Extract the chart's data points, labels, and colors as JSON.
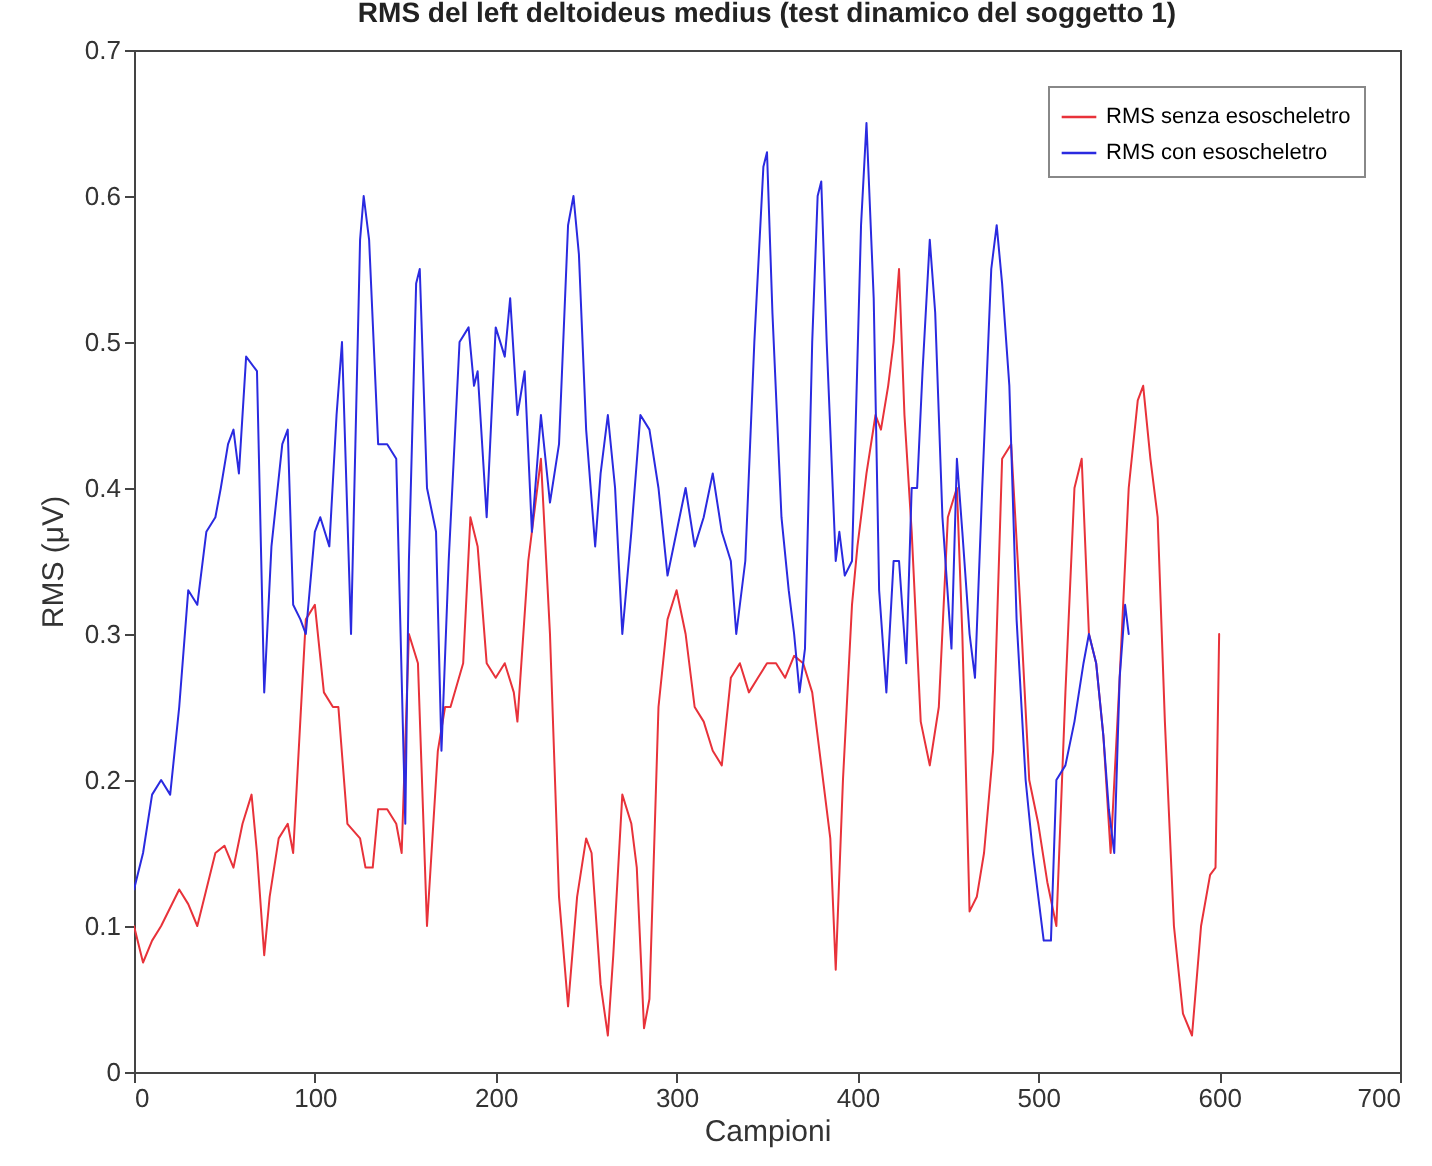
{
  "chart_data": {
    "type": "line",
    "title": "RMS del left deltoideus medius (test dinamico del soggetto 1)",
    "xlabel": "Campioni",
    "ylabel": "RMS (μV)",
    "xlim": [
      0,
      700
    ],
    "xticks": [
      0,
      100,
      200,
      300,
      400,
      500,
      600,
      700
    ],
    "ylim": [
      0,
      0.7
    ],
    "yticks": [
      0,
      0.1,
      0.2,
      0.3,
      0.4,
      0.5,
      0.6,
      0.7
    ],
    "grid": false,
    "legend": "top right",
    "series": [
      {
        "name": "RMS senza esoscheletro",
        "color": "#e8323a",
        "x": [
          0,
          5,
          10,
          15,
          25,
          30,
          35,
          45,
          50,
          55,
          60,
          65,
          68,
          72,
          75,
          80,
          85,
          88,
          95,
          100,
          105,
          110,
          113,
          118,
          125,
          128,
          132,
          135,
          140,
          145,
          148,
          152,
          157,
          162,
          168,
          172,
          175,
          182,
          186,
          190,
          195,
          200,
          205,
          210,
          212,
          218,
          225,
          230,
          235,
          240,
          245,
          250,
          253,
          258,
          262,
          265,
          270,
          275,
          278,
          282,
          285,
          290,
          295,
          300,
          305,
          310,
          315,
          320,
          325,
          330,
          335,
          340,
          345,
          350,
          355,
          360,
          365,
          370,
          375,
          380,
          385,
          388,
          392,
          397,
          400,
          405,
          410,
          413,
          417,
          420,
          423,
          426,
          430,
          435,
          440,
          445,
          450,
          455,
          458,
          462,
          466,
          470,
          475,
          480,
          485,
          490,
          495,
          500,
          505,
          510,
          515,
          520,
          524,
          528,
          532,
          536,
          540,
          545,
          550,
          555,
          558,
          562,
          566,
          570,
          575,
          580,
          585,
          590,
          595,
          598,
          600
        ],
        "values": [
          0.1,
          0.075,
          0.09,
          0.1,
          0.125,
          0.115,
          0.1,
          0.15,
          0.155,
          0.14,
          0.17,
          0.19,
          0.15,
          0.08,
          0.12,
          0.16,
          0.17,
          0.15,
          0.31,
          0.32,
          0.26,
          0.25,
          0.25,
          0.17,
          0.16,
          0.14,
          0.14,
          0.18,
          0.18,
          0.17,
          0.15,
          0.3,
          0.28,
          0.1,
          0.22,
          0.25,
          0.25,
          0.28,
          0.38,
          0.36,
          0.28,
          0.27,
          0.28,
          0.26,
          0.24,
          0.35,
          0.42,
          0.3,
          0.12,
          0.045,
          0.12,
          0.16,
          0.15,
          0.06,
          0.025,
          0.08,
          0.19,
          0.17,
          0.14,
          0.03,
          0.05,
          0.25,
          0.31,
          0.33,
          0.3,
          0.25,
          0.24,
          0.22,
          0.21,
          0.27,
          0.28,
          0.26,
          0.27,
          0.28,
          0.28,
          0.27,
          0.285,
          0.28,
          0.26,
          0.21,
          0.16,
          0.07,
          0.2,
          0.32,
          0.36,
          0.41,
          0.45,
          0.44,
          0.47,
          0.5,
          0.55,
          0.45,
          0.37,
          0.24,
          0.21,
          0.25,
          0.38,
          0.4,
          0.3,
          0.11,
          0.12,
          0.15,
          0.22,
          0.42,
          0.43,
          0.32,
          0.2,
          0.17,
          0.13,
          0.1,
          0.26,
          0.4,
          0.42,
          0.3,
          0.28,
          0.23,
          0.15,
          0.27,
          0.4,
          0.46,
          0.47,
          0.42,
          0.38,
          0.24,
          0.1,
          0.04,
          0.025,
          0.1,
          0.135,
          0.14,
          0.3
        ]
      },
      {
        "name": "RMS con esoscheletro",
        "color": "#2a2ae0",
        "x": [
          0,
          5,
          10,
          15,
          20,
          25,
          30,
          35,
          40,
          45,
          48,
          52,
          55,
          58,
          62,
          68,
          72,
          76,
          82,
          85,
          88,
          92,
          95,
          100,
          103,
          108,
          112,
          115,
          120,
          125,
          127,
          130,
          135,
          140,
          145,
          150,
          152,
          156,
          158,
          162,
          167,
          170,
          174,
          176,
          180,
          185,
          188,
          190,
          195,
          200,
          205,
          208,
          212,
          216,
          220,
          225,
          230,
          235,
          240,
          243,
          246,
          250,
          255,
          258,
          262,
          266,
          270,
          275,
          280,
          285,
          290,
          295,
          300,
          305,
          310,
          315,
          320,
          325,
          330,
          333,
          338,
          343,
          348,
          350,
          353,
          358,
          362,
          365,
          368,
          371,
          375,
          378,
          380,
          383,
          388,
          390,
          393,
          397,
          402,
          405,
          409,
          412,
          416,
          420,
          423,
          427,
          430,
          433,
          436,
          440,
          443,
          447,
          452,
          455,
          458,
          462,
          465,
          469,
          474,
          477,
          480,
          484,
          488,
          493,
          497,
          500,
          503,
          507,
          510,
          515,
          520,
          525,
          528,
          532,
          536,
          539,
          542,
          545,
          548,
          550
        ],
        "values": [
          0.125,
          0.15,
          0.19,
          0.2,
          0.19,
          0.25,
          0.33,
          0.32,
          0.37,
          0.38,
          0.4,
          0.43,
          0.44,
          0.41,
          0.49,
          0.48,
          0.26,
          0.36,
          0.43,
          0.44,
          0.32,
          0.31,
          0.3,
          0.37,
          0.38,
          0.36,
          0.45,
          0.5,
          0.3,
          0.57,
          0.6,
          0.57,
          0.43,
          0.43,
          0.42,
          0.17,
          0.35,
          0.54,
          0.55,
          0.4,
          0.37,
          0.22,
          0.35,
          0.4,
          0.5,
          0.51,
          0.47,
          0.48,
          0.38,
          0.51,
          0.49,
          0.53,
          0.45,
          0.48,
          0.37,
          0.45,
          0.39,
          0.43,
          0.58,
          0.6,
          0.56,
          0.44,
          0.36,
          0.41,
          0.45,
          0.4,
          0.3,
          0.37,
          0.45,
          0.44,
          0.4,
          0.34,
          0.37,
          0.4,
          0.36,
          0.38,
          0.41,
          0.37,
          0.35,
          0.3,
          0.35,
          0.5,
          0.62,
          0.63,
          0.52,
          0.38,
          0.33,
          0.3,
          0.26,
          0.29,
          0.5,
          0.6,
          0.61,
          0.5,
          0.35,
          0.37,
          0.34,
          0.35,
          0.58,
          0.65,
          0.53,
          0.33,
          0.26,
          0.35,
          0.35,
          0.28,
          0.4,
          0.4,
          0.48,
          0.57,
          0.52,
          0.38,
          0.29,
          0.42,
          0.37,
          0.3,
          0.27,
          0.4,
          0.55,
          0.58,
          0.54,
          0.47,
          0.31,
          0.2,
          0.15,
          0.12,
          0.09,
          0.09,
          0.2,
          0.21,
          0.24,
          0.28,
          0.3,
          0.28,
          0.23,
          0.18,
          0.15,
          0.27,
          0.32,
          0.3
        ]
      }
    ]
  }
}
